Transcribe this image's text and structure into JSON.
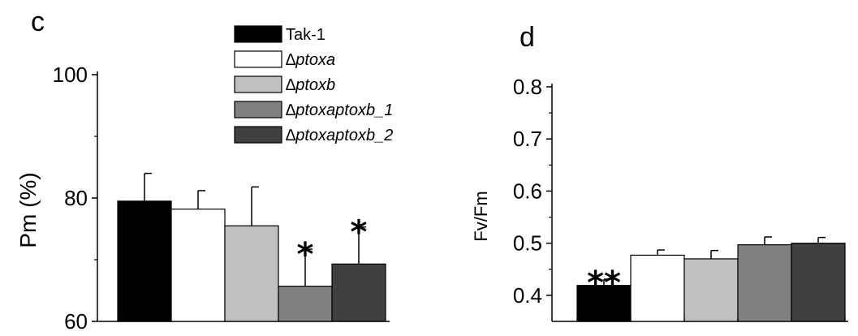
{
  "chart_data": [
    {
      "panel": "c",
      "type": "bar",
      "xlabel": "",
      "ylabel": "Pm (%)",
      "ylim": [
        60,
        100
      ],
      "yticks": [
        "60",
        "80",
        "100"
      ],
      "series": [
        {
          "name": "Tak-1",
          "value": 79.5,
          "error": 4.5,
          "color": "#000000",
          "sig": ""
        },
        {
          "name": "∆ptoxa",
          "value": 78.2,
          "error": 3.0,
          "color": "#ffffff",
          "sig": ""
        },
        {
          "name": "∆ptoxb",
          "value": 75.5,
          "error": 6.3,
          "color": "#c0c0c0",
          "sig": ""
        },
        {
          "name": "∆ptoxaptoxb_1",
          "value": 65.7,
          "error": 6.0,
          "color": "#808080",
          "sig": "*"
        },
        {
          "name": "∆ptoxaptoxb_2",
          "value": 69.3,
          "error": 6.0,
          "color": "#404040",
          "sig": "*"
        }
      ]
    },
    {
      "panel": "d",
      "type": "bar",
      "xlabel": "",
      "ylabel": "Fv/Fm",
      "ylim": [
        0.35,
        0.8
      ],
      "yticks": [
        "0.4",
        "0.5",
        "0.6",
        "0.7",
        "0.8"
      ],
      "series": [
        {
          "name": "Tak-1",
          "value": 0.419,
          "error": 0.012,
          "color": "#000000",
          "sig": "**"
        },
        {
          "name": "∆ptoxa",
          "value": 0.477,
          "error": 0.01,
          "color": "#ffffff",
          "sig": ""
        },
        {
          "name": "∆ptoxb",
          "value": 0.47,
          "error": 0.016,
          "color": "#c0c0c0",
          "sig": ""
        },
        {
          "name": "∆ptoxaptoxb_1",
          "value": 0.497,
          "error": 0.015,
          "color": "#808080",
          "sig": ""
        },
        {
          "name": "∆ptoxaptoxb_2",
          "value": 0.5,
          "error": 0.011,
          "color": "#404040",
          "sig": ""
        }
      ]
    }
  ],
  "legend": {
    "entries": [
      {
        "label": "Tak-1",
        "color": "#000000",
        "italic": false
      },
      {
        "label": "∆ptoxa",
        "color": "#ffffff",
        "italic": true
      },
      {
        "label": "∆ptoxb",
        "color": "#c0c0c0",
        "italic": true
      },
      {
        "label": "∆ptoxaptoxb_1",
        "color": "#808080",
        "italic": true
      },
      {
        "label": "∆ptoxaptoxb_2",
        "color": "#404040",
        "italic": true
      }
    ]
  }
}
